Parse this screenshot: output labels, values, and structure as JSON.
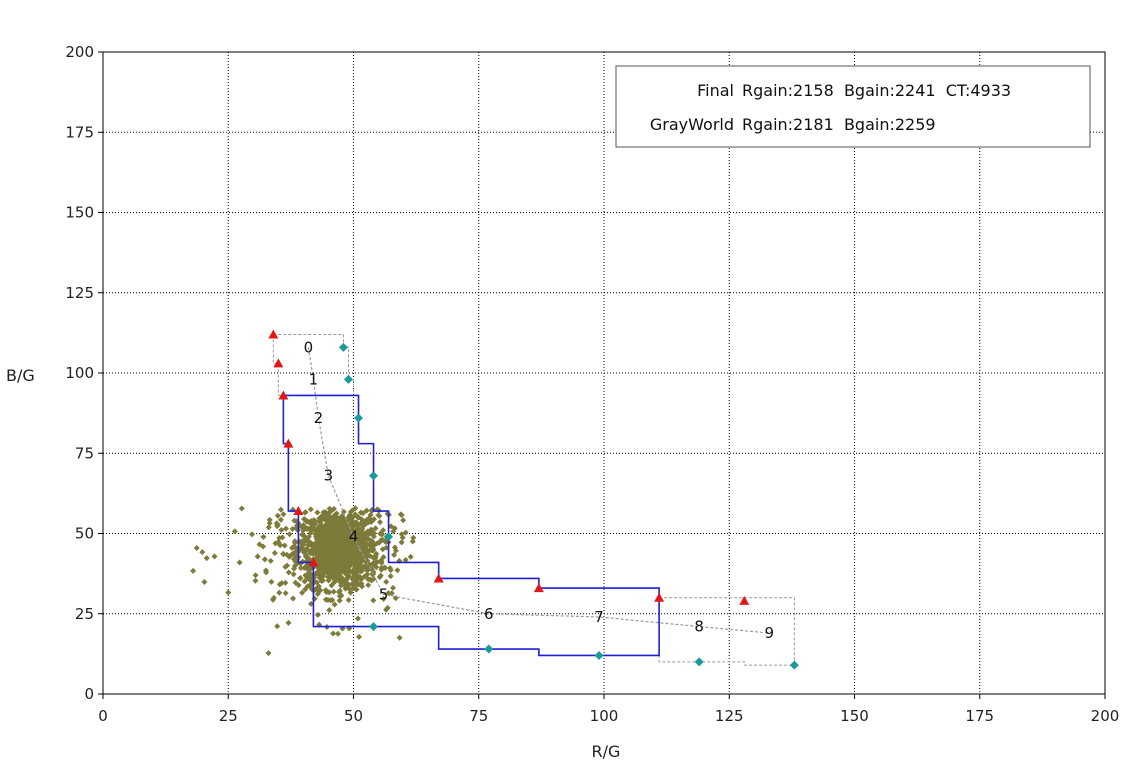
{
  "chart_data": {
    "type": "scatter",
    "xlabel": "R/G",
    "ylabel": "B/G",
    "xlim": [
      0,
      200
    ],
    "ylim": [
      0,
      200
    ],
    "xticks": [
      0,
      25,
      50,
      75,
      100,
      125,
      150,
      175,
      200
    ],
    "yticks": [
      0,
      25,
      50,
      75,
      100,
      125,
      150,
      175,
      200
    ],
    "grid": true,
    "legend": {
      "position": "top-right",
      "lines": [
        {
          "name": "Final",
          "text": "Rgain:2158  Bgain:2241  CT:4933"
        },
        {
          "name": "GrayWorld",
          "text": "Rgain:2181  Bgain:2259"
        }
      ]
    },
    "colors": {
      "blue_boundary": "#1f1fd6",
      "gray_boundary": "#9a9a9a",
      "red_markers": "#e01818",
      "teal_markers": "#1a9a9a",
      "scatter_points": "#7d7a3a"
    },
    "zone_labels": [
      {
        "label": "0",
        "x": 41,
        "y": 108
      },
      {
        "label": "1",
        "x": 42,
        "y": 98
      },
      {
        "label": "2",
        "x": 43,
        "y": 86
      },
      {
        "label": "3",
        "x": 45,
        "y": 68
      },
      {
        "label": "4",
        "x": 50,
        "y": 49
      },
      {
        "label": "5",
        "x": 56,
        "y": 31
      },
      {
        "label": "6",
        "x": 77,
        "y": 25
      },
      {
        "label": "7",
        "x": 99,
        "y": 24
      },
      {
        "label": "8",
        "x": 119,
        "y": 21
      },
      {
        "label": "9",
        "x": 133,
        "y": 19
      }
    ],
    "red_points": [
      {
        "x": 34,
        "y": 112
      },
      {
        "x": 35,
        "y": 103
      },
      {
        "x": 36,
        "y": 93
      },
      {
        "x": 37,
        "y": 78
      },
      {
        "x": 39,
        "y": 57
      },
      {
        "x": 42,
        "y": 41
      },
      {
        "x": 67,
        "y": 36
      },
      {
        "x": 87,
        "y": 33
      },
      {
        "x": 111,
        "y": 30
      },
      {
        "x": 128,
        "y": 29
      }
    ],
    "teal_points": [
      {
        "x": 48,
        "y": 108
      },
      {
        "x": 49,
        "y": 98
      },
      {
        "x": 51,
        "y": 86
      },
      {
        "x": 54,
        "y": 68
      },
      {
        "x": 57,
        "y": 49
      },
      {
        "x": 54,
        "y": 21
      },
      {
        "x": 77,
        "y": 14
      },
      {
        "x": 99,
        "y": 12
      },
      {
        "x": 119,
        "y": 10
      },
      {
        "x": 138,
        "y": 9
      }
    ],
    "blue_boundary": [
      [
        36,
        93
      ],
      [
        51,
        93
      ],
      [
        51,
        78
      ],
      [
        54,
        78
      ],
      [
        54,
        57
      ],
      [
        57,
        57
      ],
      [
        57,
        41
      ],
      [
        67,
        41
      ],
      [
        67,
        36
      ],
      [
        87,
        36
      ],
      [
        87,
        33
      ],
      [
        111,
        33
      ],
      [
        111,
        12
      ],
      [
        87,
        12
      ],
      [
        87,
        14
      ],
      [
        67,
        14
      ],
      [
        67,
        21
      ],
      [
        42,
        21
      ],
      [
        42,
        41
      ],
      [
        39,
        41
      ],
      [
        39,
        57
      ],
      [
        37,
        57
      ],
      [
        37,
        78
      ],
      [
        36,
        78
      ],
      [
        36,
        93
      ]
    ],
    "gray_boundary_upper": [
      [
        34,
        112
      ],
      [
        48,
        112
      ],
      [
        48,
        108
      ],
      [
        49,
        108
      ],
      [
        49,
        98
      ],
      [
        50,
        98
      ],
      [
        50,
        93
      ]
    ],
    "gray_boundary_left": [
      [
        34,
        112
      ],
      [
        34,
        103
      ],
      [
        35,
        103
      ],
      [
        35,
        93
      ],
      [
        36,
        93
      ]
    ],
    "gray_boundary_right": [
      [
        111,
        30
      ],
      [
        128,
        30
      ],
      [
        138,
        30
      ],
      [
        138,
        9
      ],
      [
        128,
        9
      ],
      [
        128,
        10
      ],
      [
        119,
        10
      ],
      [
        111,
        10
      ],
      [
        111,
        12
      ]
    ],
    "gray_center_curve": [
      [
        41,
        108
      ],
      [
        42,
        98
      ],
      [
        43,
        86
      ],
      [
        45,
        68
      ],
      [
        50,
        49
      ],
      [
        56,
        31
      ],
      [
        77,
        25
      ],
      [
        99,
        24
      ],
      [
        119,
        21
      ],
      [
        133,
        19
      ]
    ],
    "scatter_cluster": {
      "center": [
        47,
        45
      ],
      "core_spread": [
        4,
        6
      ],
      "outlier_spread": [
        11,
        11
      ],
      "count": 1400
    }
  }
}
